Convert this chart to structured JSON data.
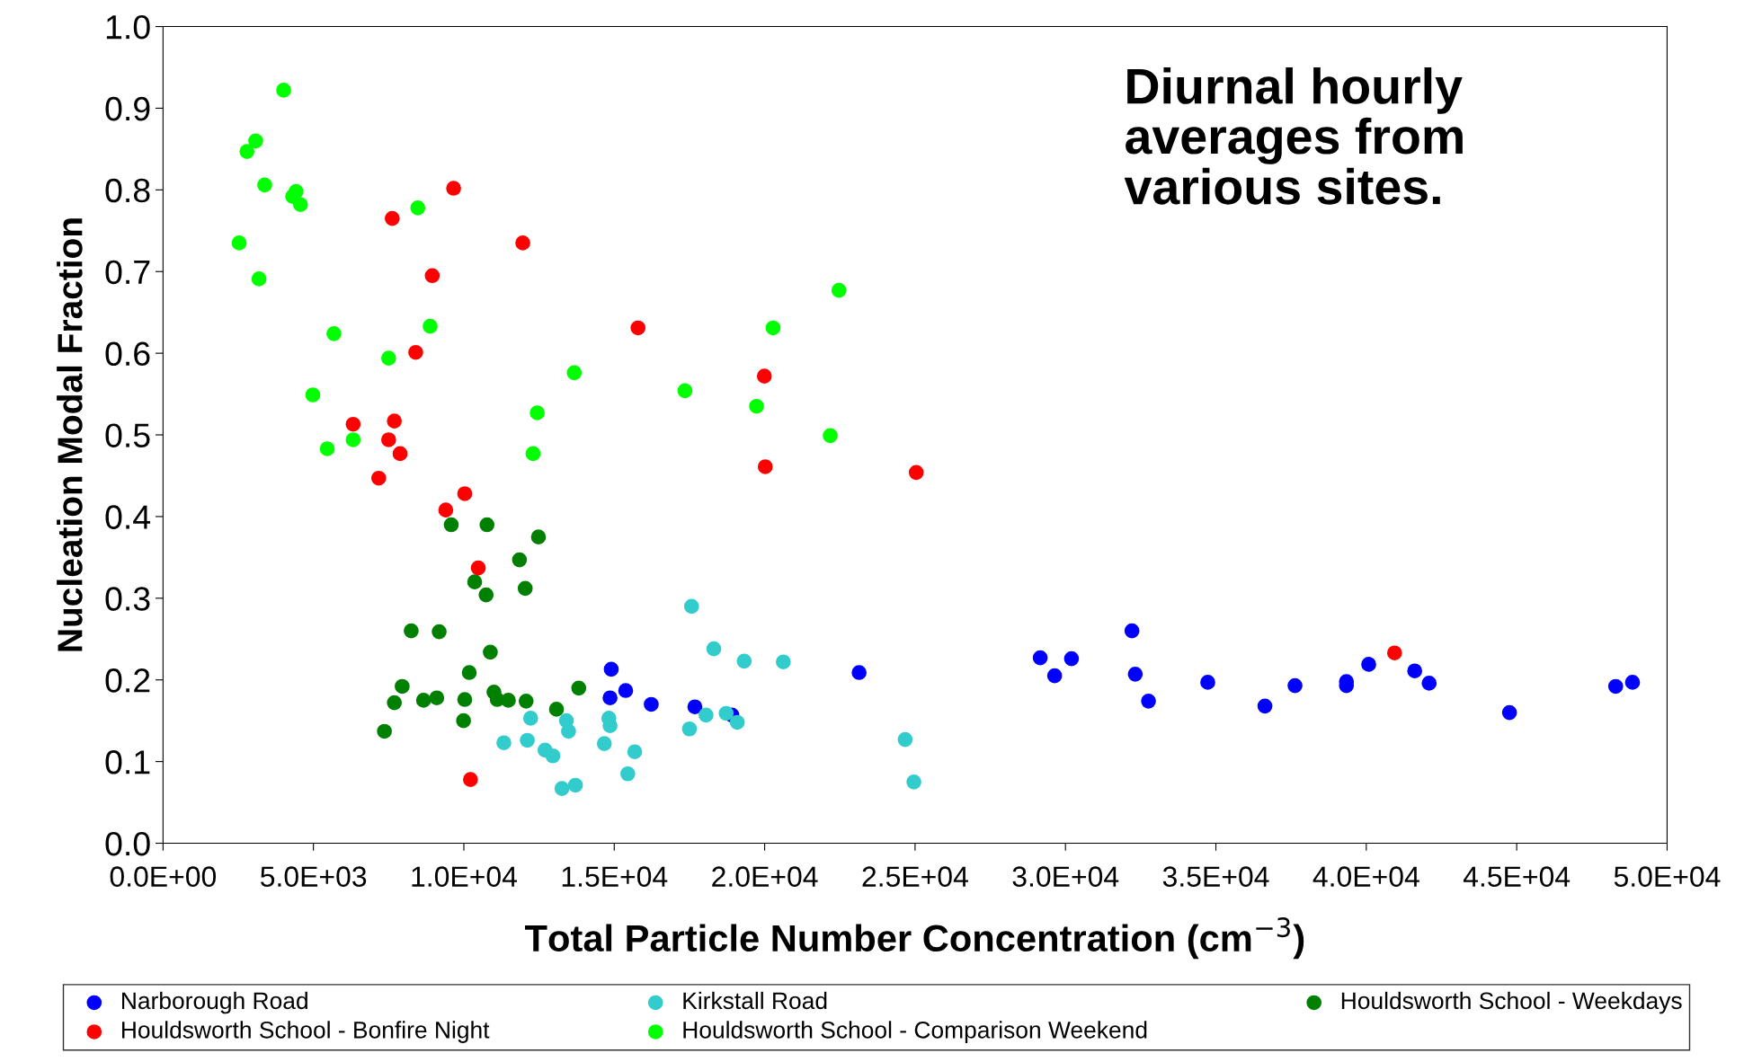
{
  "chart_data": {
    "type": "scatter",
    "xlabel": "Total Particle Number Concentration (cm$^{−3}$)",
    "ylabel": "Nucleation Modal Fraction",
    "annotations": [
      "Diurnal hourly\naverages from\nvarious sites."
    ],
    "xlim": [
      0,
      50000
    ],
    "ylim": [
      0,
      1.0
    ],
    "xticks": [
      {
        "value": 0,
        "label": "0.0E+00"
      },
      {
        "value": 5000,
        "label": "5.0E+03"
      },
      {
        "value": 10000,
        "label": "1.0E+04"
      },
      {
        "value": 15000,
        "label": "1.5E+04"
      },
      {
        "value": 20000,
        "label": "2.0E+04"
      },
      {
        "value": 25000,
        "label": "2.5E+04"
      },
      {
        "value": 30000,
        "label": "3.0E+04"
      },
      {
        "value": 35000,
        "label": "3.5E+04"
      },
      {
        "value": 40000,
        "label": "4.0E+04"
      },
      {
        "value": 45000,
        "label": "4.5E+04"
      },
      {
        "value": 50000,
        "label": "5.0E+04"
      }
    ],
    "yticks": [
      {
        "value": 0,
        "label": "0.0"
      },
      {
        "value": 0.1,
        "label": "0.1"
      },
      {
        "value": 0.2,
        "label": "0.2"
      },
      {
        "value": 0.3,
        "label": "0.3"
      },
      {
        "value": 0.4,
        "label": "0.4"
      },
      {
        "value": 0.5,
        "label": "0.5"
      },
      {
        "value": 0.6,
        "label": "0.6"
      },
      {
        "value": 0.7,
        "label": "0.7"
      },
      {
        "value": 0.8,
        "label": "0.8"
      },
      {
        "value": 0.9,
        "label": "0.9"
      },
      {
        "value": 1.0,
        "label": "1.0"
      }
    ],
    "grid": false,
    "legend": "bottom",
    "marker": "circle",
    "series": [
      {
        "name": "Narborough Road",
        "color": "#0000ff",
        "x": [
          14900,
          14860,
          15380,
          16230,
          17680,
          18910,
          23140,
          29160,
          29640,
          30200,
          32210,
          32320,
          32760,
          34730,
          36630,
          37630,
          39340,
          39340,
          40080,
          41610,
          42090,
          44760,
          48290,
          48850
        ],
        "values": [
          0.213,
          0.178,
          0.187,
          0.17,
          0.167,
          0.157,
          0.209,
          0.227,
          0.205,
          0.226,
          0.26,
          0.207,
          0.174,
          0.197,
          0.168,
          0.193,
          0.198,
          0.193,
          0.219,
          0.211,
          0.196,
          0.16,
          0.192,
          0.197
        ]
      },
      {
        "name": "Kirkstall Road",
        "color": "#33cccc",
        "x": [
          17570,
          18310,
          19320,
          20620,
          12220,
          13410,
          14820,
          14860,
          13480,
          11330,
          12110,
          12700,
          12960,
          14670,
          15680,
          15450,
          13260,
          13710,
          17500,
          18050,
          18720,
          19090,
          24670,
          24960
        ],
        "values": [
          0.29,
          0.238,
          0.223,
          0.222,
          0.153,
          0.15,
          0.153,
          0.144,
          0.137,
          0.123,
          0.126,
          0.114,
          0.107,
          0.122,
          0.112,
          0.085,
          0.067,
          0.071,
          0.14,
          0.157,
          0.159,
          0.148,
          0.127,
          0.075
        ]
      },
      {
        "name": "Houldsworth School - Weekdays",
        "color": "#008000",
        "x": [
          9580,
          10770,
          11850,
          12480,
          12040,
          10360,
          10740,
          8250,
          9180,
          10880,
          7950,
          10180,
          7690,
          8660,
          9100,
          10030,
          11000,
          11110,
          11480,
          12070,
          13080,
          13820,
          9990,
          7360
        ],
        "values": [
          0.39,
          0.39,
          0.347,
          0.375,
          0.312,
          0.32,
          0.304,
          0.26,
          0.259,
          0.234,
          0.192,
          0.209,
          0.172,
          0.175,
          0.178,
          0.176,
          0.185,
          0.176,
          0.175,
          0.174,
          0.164,
          0.19,
          0.15,
          0.137
        ]
      },
      {
        "name": "Houldsworth School - Bonfire Night",
        "color": "#ff0000",
        "x": [
          9660,
          7620,
          11960,
          8950,
          8400,
          15790,
          19990,
          20020,
          25040,
          6320,
          7690,
          7500,
          7880,
          7170,
          10030,
          9400,
          10480,
          10220,
          40940
        ],
        "values": [
          0.802,
          0.765,
          0.735,
          0.695,
          0.601,
          0.631,
          0.572,
          0.461,
          0.454,
          0.513,
          0.517,
          0.494,
          0.477,
          0.447,
          0.428,
          0.408,
          0.337,
          0.078,
          0.233
        ]
      },
      {
        "name": "Houldsworth School - Comparison Weekend",
        "color": "#00ff00",
        "x": [
          4010,
          3080,
          2790,
          3380,
          4420,
          4310,
          4570,
          2530,
          3190,
          8470,
          8880,
          5680,
          7500,
          4980,
          5460,
          6320,
          13670,
          12440,
          12300,
          17350,
          19730,
          20280,
          22180,
          22470
        ],
        "values": [
          0.922,
          0.86,
          0.847,
          0.806,
          0.798,
          0.792,
          0.782,
          0.735,
          0.691,
          0.778,
          0.633,
          0.624,
          0.594,
          0.549,
          0.483,
          0.494,
          0.576,
          0.527,
          0.477,
          0.554,
          0.535,
          0.631,
          0.499,
          0.677
        ]
      }
    ]
  }
}
